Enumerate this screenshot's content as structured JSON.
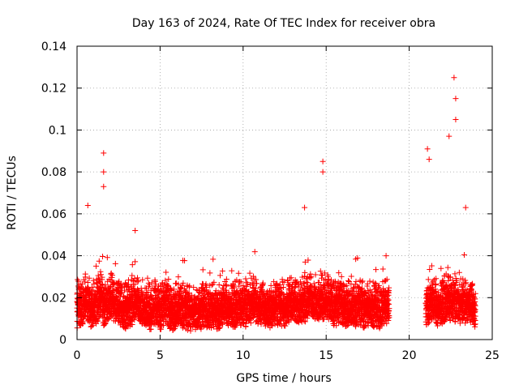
{
  "chart_data": {
    "type": "scatter",
    "title": "Day 163 of 2024, Rate Of TEC Index for receiver obra",
    "xlabel": "GPS time / hours",
    "ylabel": "ROTI / TECUs",
    "xlim": [
      0,
      25
    ],
    "ylim": [
      0,
      0.14
    ],
    "xticks": [
      "0",
      "5",
      "10",
      "15",
      "20",
      "25"
    ],
    "yticks": [
      "0",
      "0.02",
      "0.04",
      "0.06",
      "0.08",
      "0.1",
      "0.12",
      "0.14"
    ],
    "grid": true,
    "marker": "+",
    "color": "#ff0000",
    "data_gap_hours": [
      18.8,
      21.0
    ],
    "points_summary": {
      "baseline_range": [
        0.005,
        0.03
      ],
      "notable_peaks": [
        {
          "x": 1.6,
          "y": 0.089
        },
        {
          "x": 1.6,
          "y": 0.08
        },
        {
          "x": 1.6,
          "y": 0.073
        },
        {
          "x": 0.65,
          "y": 0.064
        },
        {
          "x": 3.5,
          "y": 0.052
        },
        {
          "x": 13.7,
          "y": 0.063
        },
        {
          "x": 14.8,
          "y": 0.085
        },
        {
          "x": 14.8,
          "y": 0.08
        },
        {
          "x": 21.1,
          "y": 0.091
        },
        {
          "x": 21.2,
          "y": 0.086
        },
        {
          "x": 22.4,
          "y": 0.097
        },
        {
          "x": 22.7,
          "y": 0.125
        },
        {
          "x": 22.8,
          "y": 0.115
        },
        {
          "x": 22.8,
          "y": 0.105
        },
        {
          "x": 23.4,
          "y": 0.063
        }
      ]
    },
    "series": [
      {
        "x": [
          0.2,
          0.5,
          0.8,
          1.1,
          1.4,
          1.7,
          2.0,
          2.3,
          2.6,
          2.9,
          3.2,
          3.5,
          3.8,
          4.1,
          4.4,
          4.7,
          5.0,
          5.3,
          5.6,
          5.9,
          6.2,
          6.5,
          6.8,
          7.1,
          7.4,
          7.7,
          8.0,
          8.3,
          8.6,
          8.9,
          9.2,
          9.5,
          9.8,
          10.1,
          10.4,
          10.7,
          11.0,
          11.3,
          11.6,
          11.9,
          12.2,
          12.5,
          12.8,
          13.1,
          13.4,
          13.7,
          14.0,
          14.3,
          14.6,
          14.9,
          15.2,
          15.5,
          15.8,
          16.1,
          16.4,
          16.7,
          17.0,
          17.3,
          17.6,
          17.9,
          18.2,
          18.5,
          21.1,
          21.4,
          21.7,
          22.0,
          22.3,
          22.6,
          22.9,
          23.2,
          23.5,
          23.8
        ],
        "y": [
          0.013,
          0.021,
          0.016,
          0.018,
          0.024,
          0.015,
          0.022,
          0.019,
          0.017,
          0.014,
          0.016,
          0.021,
          0.018,
          0.015,
          0.013,
          0.016,
          0.012,
          0.019,
          0.014,
          0.013,
          0.016,
          0.015,
          0.012,
          0.013,
          0.014,
          0.016,
          0.013,
          0.015,
          0.014,
          0.017,
          0.016,
          0.015,
          0.018,
          0.016,
          0.019,
          0.022,
          0.015,
          0.016,
          0.014,
          0.018,
          0.017,
          0.016,
          0.021,
          0.019,
          0.018,
          0.02,
          0.023,
          0.021,
          0.019,
          0.022,
          0.019,
          0.016,
          0.018,
          0.017,
          0.015,
          0.016,
          0.018,
          0.015,
          0.017,
          0.016,
          0.014,
          0.017,
          0.018,
          0.02,
          0.016,
          0.018,
          0.022,
          0.021,
          0.02,
          0.019,
          0.02,
          0.015
        ]
      }
    ]
  }
}
